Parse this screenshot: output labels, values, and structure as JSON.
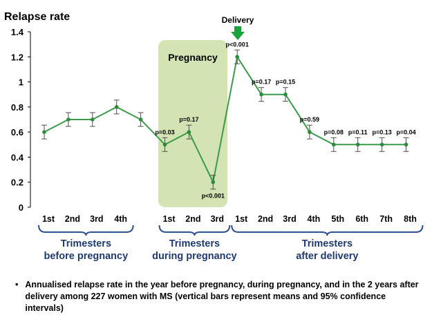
{
  "chart_data": {
    "type": "line",
    "ylabel": "Relapse rate",
    "ylim": [
      0,
      1.4
    ],
    "yticks": [
      "0",
      "0.2",
      "0.4",
      "0.6",
      "0.8",
      "1",
      "1.2",
      "1.4"
    ],
    "categories": [
      "1st",
      "2nd",
      "3rd",
      "4th",
      "",
      "1st",
      "2nd",
      "3rd",
      "1st",
      "2nd",
      "3rd",
      "4th",
      "5th",
      "6th",
      "7th",
      "8th"
    ],
    "values": [
      0.6,
      0.7,
      0.7,
      0.8,
      0.7,
      0.5,
      0.6,
      0.2,
      1.2,
      0.9,
      0.9,
      0.6,
      0.5,
      0.5,
      0.5,
      0.5
    ],
    "error_half_width": [
      0.055,
      0.055,
      0.055,
      0.055,
      0.055,
      0.055,
      0.055,
      0.055,
      0.055,
      0.055,
      0.055,
      0.055,
      0.055,
      0.055,
      0.055,
      0.055
    ],
    "pvalues": [
      "",
      "",
      "",
      "",
      "",
      "p=0.03",
      "p=0.17",
      "p<0.001",
      "p<0.001",
      "p=0.17",
      "p=0.15",
      "p=0.59",
      "p=0.08",
      "p=0.11",
      "p=0.13",
      "p=0.04"
    ],
    "groups": [
      {
        "label_line1": "Trimesters",
        "label_line2": "before pregnancy",
        "from": 0,
        "to": 3
      },
      {
        "label_line1": "Trimesters",
        "label_line2": "during pregnancy",
        "from": 5,
        "to": 7
      },
      {
        "label_line1": "Trimesters",
        "label_line2": "after delivery",
        "from": 8,
        "to": 15
      }
    ],
    "pregnancy_label": "Pregnancy",
    "delivery_label": "Delivery",
    "grid": false,
    "colors": {
      "line": "#3a9a4a",
      "marker": "#2e8b3e",
      "error_bar": "#4d4d4d",
      "pregnancy_band": "#d3e3b4",
      "brace": "#2f4f8f",
      "group_label": "#1f3a6e",
      "delivery_arrow": "#1aa33a"
    }
  },
  "caption": {
    "bullet": "•",
    "text": "Annualised relapse rate in the year before pregnancy, during pregnancy, and in the 2 years after delivery among 227 women with MS (vertical bars represent means and 95% confidence intervals)"
  }
}
